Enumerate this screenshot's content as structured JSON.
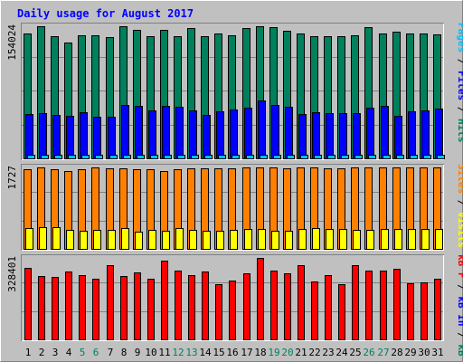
{
  "chart_data": {
    "type": "bar",
    "title": "Daily usage for August 2017",
    "colors": {
      "background": "#c0c0c0",
      "frame_light": "#ffffff",
      "frame_dark": "#808080",
      "gridline": "#808080",
      "title": "#0000ff",
      "hits": "#00805c",
      "files": "#0000ff",
      "pages": "#00c0ff",
      "visits": "#ffff00",
      "sites": "#ff8000",
      "kb": "#ff0000",
      "weekday_label": "#000000",
      "weekend_label": "#00805c",
      "separator": "#000000"
    },
    "categories": [
      "1",
      "2",
      "3",
      "4",
      "5",
      "6",
      "7",
      "8",
      "9",
      "10",
      "11",
      "12",
      "13",
      "14",
      "15",
      "16",
      "17",
      "18",
      "19",
      "20",
      "21",
      "22",
      "23",
      "24",
      "25",
      "26",
      "27",
      "28",
      "29",
      "30",
      "31"
    ],
    "weekend_days": [
      "5",
      "6",
      "12",
      "13",
      "19",
      "20",
      "26",
      "27"
    ],
    "panels": [
      {
        "id": "hits-files-pages",
        "max_label": "154024",
        "ylim": [
          0,
          154024
        ],
        "side_label_parts": [
          {
            "text": "Pages",
            "color": "#00c0ff"
          },
          {
            "text": " / ",
            "color": "#000000"
          },
          {
            "text": "Files",
            "color": "#0000ff"
          },
          {
            "text": " / ",
            "color": "#000000"
          },
          {
            "text": "Hits",
            "color": "#00805c"
          }
        ],
        "series": [
          {
            "name": "Hits",
            "color": "#00805c",
            "values": [
              146000,
              154024,
              142000,
              135000,
              144000,
              143000,
              141000,
              154024,
              150000,
              142000,
              150000,
              142000,
              152000,
              142000,
              146000,
              143000,
              152000,
              154024,
              153000,
              149000,
              146000,
              142000,
              142000,
              142000,
              143000,
              153000,
              146000,
              148000,
              146000,
              146000,
              145000
            ]
          },
          {
            "name": "Files",
            "color": "#0000ff",
            "values": [
              52000,
              53000,
              51000,
              50000,
              54000,
              49000,
              49000,
              62000,
              61000,
              56000,
              61000,
              60000,
              56000,
              51000,
              55000,
              57000,
              59000,
              68000,
              62000,
              60000,
              52000,
              54000,
              53000,
              53000,
              53000,
              59000,
              61000,
              50000,
              55000,
              56000,
              58000
            ]
          },
          {
            "name": "Pages",
            "color": "#00c0ff",
            "values": [
              4000,
              4200,
              3900,
              3800,
              4000,
              3900,
              3800,
              4300,
              4200,
              4000,
              4200,
              4100,
              4000,
              3900,
              4000,
              4100,
              4100,
              4500,
              4200,
              4100,
              3900,
              4000,
              4000,
              3900,
              4000,
              4200,
              4200,
              3900,
              4000,
              4000,
              4100
            ]
          }
        ]
      },
      {
        "id": "visits-sites",
        "max_label": "1727",
        "ylim": [
          0,
          1727
        ],
        "side_label_parts": [
          {
            "text": "Sites",
            "color": "#ff8000"
          },
          {
            "text": " / ",
            "color": "#000000"
          },
          {
            "text": "Visits",
            "color": "#ffff00"
          }
        ],
        "series": [
          {
            "name": "Sites",
            "color": "#ff8000",
            "values": [
              1690,
              1727,
              1690,
              1655,
              1690,
              1727,
              1710,
              1700,
              1690,
              1690,
              1655,
              1690,
              1700,
              1710,
              1710,
              1700,
              1727,
              1727,
              1720,
              1700,
              1727,
              1727,
              1715,
              1710,
              1727,
              1727,
              1727,
              1727,
              1727,
              1727,
              1727
            ]
          },
          {
            "name": "Visits",
            "color": "#ffff00",
            "values": [
              440,
              460,
              460,
              410,
              390,
              400,
              410,
              445,
              360,
              400,
              390,
              440,
              410,
              390,
              380,
              410,
              420,
              420,
              390,
              390,
              420,
              440,
              430,
              430,
              410,
              400,
              430,
              430,
              420,
              420,
              430
            ]
          }
        ]
      },
      {
        "id": "kbytes",
        "max_label": "328401",
        "ylim": [
          0,
          328401
        ],
        "side_label_parts": [
          {
            "text": "kB F",
            "color": "#ff0000"
          },
          {
            "text": " / ",
            "color": "#000000"
          },
          {
            "text": "kB In",
            "color": "#0000ff"
          },
          {
            "text": " / ",
            "color": "#000000"
          },
          {
            "text": "kB Out",
            "color": "#00805c"
          }
        ],
        "series": [
          {
            "name": "kB F",
            "color": "#ff0000",
            "values": [
              288000,
              254000,
              251000,
              274000,
              258000,
              244000,
              298000,
              254000,
              270000,
              244000,
              317000,
              278000,
              258000,
              274000,
              222000,
              238000,
              268000,
              328401,
              278000,
              268000,
              298000,
              234000,
              258000,
              224000,
              298000,
              276000,
              276000,
              285000,
              228000,
              230000,
              244000
            ]
          }
        ]
      }
    ]
  }
}
